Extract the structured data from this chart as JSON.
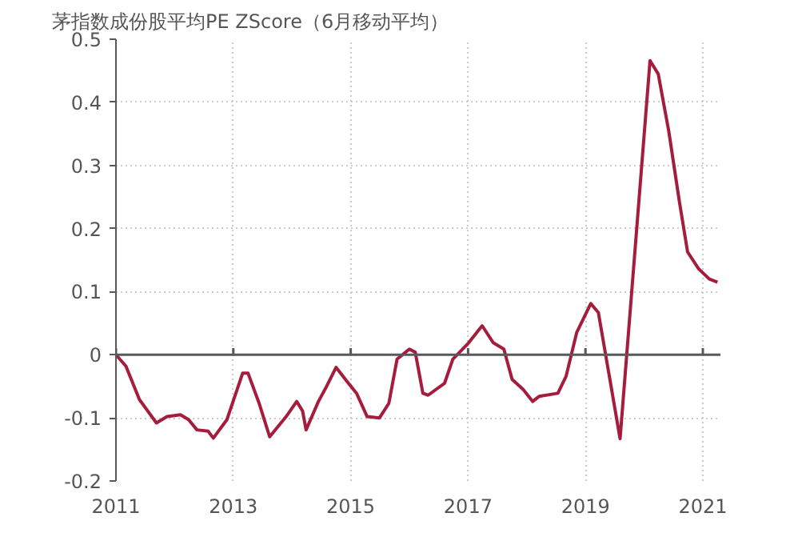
{
  "chart_data": {
    "type": "line",
    "title": "茅指数成份股平均PE ZScore（6月移动平均）",
    "series": [
      {
        "color": "#a51c3c",
        "x": [
          2011.0,
          2011.17,
          2011.4,
          2011.69,
          2011.87,
          2012.1,
          2012.24,
          2012.38,
          2012.57,
          2012.66,
          2012.89,
          2013.16,
          2013.25,
          2013.44,
          2013.62,
          2013.9,
          2014.08,
          2014.18,
          2014.24,
          2014.45,
          2014.59,
          2014.75,
          2014.96,
          2015.1,
          2015.28,
          2015.49,
          2015.65,
          2015.79,
          2016.0,
          2016.1,
          2016.23,
          2016.32,
          2016.6,
          2016.74,
          2017.01,
          2017.24,
          2017.43,
          2017.61,
          2017.75,
          2017.94,
          2018.1,
          2018.21,
          2018.53,
          2018.67,
          2018.85,
          2019.09,
          2019.22,
          2019.59,
          2020.1,
          2020.24,
          2020.42,
          2020.6,
          2020.74,
          2020.93,
          2021.11,
          2021.25
        ],
        "values": [
          0,
          -0.018,
          -0.071,
          -0.108,
          -0.098,
          -0.095,
          -0.103,
          -0.119,
          -0.121,
          -0.132,
          -0.103,
          -0.029,
          -0.029,
          -0.077,
          -0.13,
          -0.098,
          -0.074,
          -0.089,
          -0.119,
          -0.074,
          -0.05,
          -0.02,
          -0.045,
          -0.061,
          -0.098,
          -0.1,
          -0.077,
          -0.007,
          0.009,
          0.004,
          -0.061,
          -0.064,
          -0.045,
          -0.007,
          0.019,
          0.046,
          0.019,
          0.009,
          -0.039,
          -0.055,
          -0.074,
          -0.066,
          -0.061,
          -0.034,
          0.035,
          0.081,
          0.067,
          -0.133,
          0.466,
          0.445,
          0.354,
          0.243,
          0.163,
          0.136,
          0.12,
          0.115
        ]
      }
    ],
    "xlim": [
      2011,
      2021.3
    ],
    "xticks": [
      2011,
      2013,
      2015,
      2017,
      2019,
      2021
    ],
    "ylim": [
      -0.2,
      0.5
    ],
    "yticks": [
      -0.2,
      -0.1,
      0,
      0.1,
      0.2,
      0.3,
      0.4,
      0.5
    ],
    "ref_lines": [
      {
        "axis": "y",
        "value": 0,
        "color": "#595959"
      }
    ],
    "grid": true,
    "line_style": "solid"
  }
}
